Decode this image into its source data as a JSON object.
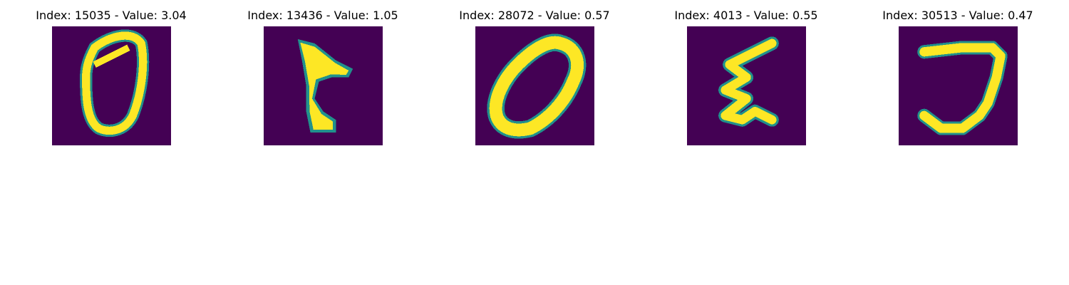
{
  "figure": {
    "colors": {
      "background": "#440154",
      "edge": "#21918c",
      "stroke": "#fde725"
    },
    "panels": [
      {
        "index": 15035,
        "value": 3.04,
        "title": "Index: 15035 - Value: 3.04",
        "glyph": "zero-narrow"
      },
      {
        "index": 13436,
        "value": 1.05,
        "title": "Index: 13436 - Value: 1.05",
        "glyph": "t-shape"
      },
      {
        "index": 28072,
        "value": 0.57,
        "title": "Index: 28072 - Value: 0.57",
        "glyph": "zero-wide"
      },
      {
        "index": 4013,
        "value": 0.55,
        "title": "Index: 4013 - Value: 0.55",
        "glyph": "epsilon"
      },
      {
        "index": 30513,
        "value": 0.47,
        "title": "Index: 30513 - Value: 0.47",
        "glyph": "j-shape"
      }
    ]
  }
}
